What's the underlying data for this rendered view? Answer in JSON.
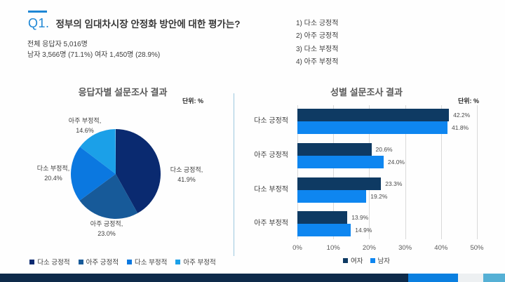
{
  "accent_color": "#1e87d5",
  "header": {
    "question_no": "Q1.",
    "question": "정부의 임대차시장 안정화 방안에 대한 평가는?",
    "respondents_total": "전체 응답자 5,016명",
    "respondents_gender": "남자 3,566명 (71.1%) 여자 1,450명 (28.9%)",
    "options": [
      "1) 다소 긍정적",
      "2) 아주 긍정적",
      "3) 다소 부정적",
      "4) 아주 부정적"
    ]
  },
  "chart_data": [
    {
      "type": "pie",
      "title": "응답자별 설문조사 결과",
      "unit_label": "단위: %",
      "labels": [
        "다소 긍정적",
        "아주 긍정적",
        "다소 부정적",
        "아주 부정적"
      ],
      "values": [
        41.9,
        23.0,
        20.4,
        14.6
      ],
      "colors": [
        "#0a2a70",
        "#175a99",
        "#0b78e0",
        "#1ba0e8"
      ],
      "start_angle": "top",
      "direction": "clockwise",
      "legend_position": "bottom"
    },
    {
      "type": "bar",
      "orientation": "horizontal",
      "title": "성별 설문조사 결과",
      "unit_label": "단위: %",
      "categories": [
        "다소 긍정적",
        "아주 긍정적",
        "다소 부정적",
        "아주 부정적"
      ],
      "series": [
        {
          "name": "여자",
          "color": "#0e3a63",
          "values": [
            42.2,
            20.6,
            23.3,
            13.9
          ]
        },
        {
          "name": "남자",
          "color": "#0e86f0",
          "values": [
            41.8,
            24.0,
            19.2,
            14.9
          ]
        }
      ],
      "xlim": [
        0,
        50
      ],
      "x_ticks": [
        "0%",
        "10%",
        "20%",
        "30%",
        "40%",
        "50%"
      ],
      "grid": true,
      "value_labels": true,
      "legend_position": "bottom"
    }
  ],
  "footer": {
    "segment_colors": [
      "#0e2a4a",
      "#0a7fe0",
      "#edf0f2",
      "#55b0d5"
    ]
  }
}
